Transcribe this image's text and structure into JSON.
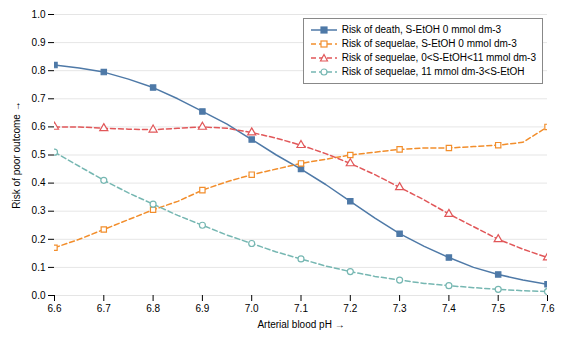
{
  "chart_data": {
    "type": "line",
    "xlabel": "Arterial blood pH",
    "ylabel": "Risk of poor outcome",
    "xlim": [
      6.6,
      7.6
    ],
    "ylim": [
      0.0,
      1.0
    ],
    "xticks": [
      6.6,
      6.7,
      6.8,
      6.9,
      {
        "value": 7.0,
        "label": "7.0"
      },
      7.1,
      7.2,
      7.3,
      7.4,
      7.5,
      7.6
    ],
    "yticks": [
      {
        "value": 0.0,
        "label": "0.0"
      },
      0.1,
      0.2,
      0.3,
      0.4,
      0.5,
      0.6,
      0.7,
      0.8,
      0.9,
      {
        "value": 1.0,
        "label": "1.0"
      }
    ],
    "grid": "y",
    "legend": "upper right",
    "x": [
      6.6,
      6.65,
      6.7,
      6.75,
      6.8,
      6.85,
      6.9,
      6.95,
      7.0,
      7.05,
      7.1,
      7.15,
      7.2,
      7.25,
      7.3,
      7.35,
      7.4,
      7.45,
      7.5,
      7.55,
      7.6
    ],
    "series": [
      {
        "name": "Risk of death, S-EtOH 0 mmol dm-3",
        "marker": "square",
        "line_style": "solid",
        "values": [
          0.82,
          0.81,
          0.795,
          0.77,
          0.74,
          0.7,
          0.655,
          0.61,
          0.555,
          0.5,
          0.45,
          0.395,
          0.335,
          0.275,
          0.22,
          0.175,
          0.135,
          0.1,
          0.075,
          0.055,
          0.04
        ]
      },
      {
        "name": "Risk of sequelae, S-EtOH 0 mmol dm-3",
        "marker": "open-square",
        "line_style": "dashed",
        "values": [
          0.17,
          0.2,
          0.235,
          0.27,
          0.305,
          0.335,
          0.375,
          0.405,
          0.43,
          0.45,
          0.47,
          0.485,
          0.5,
          0.51,
          0.52,
          0.525,
          0.525,
          0.53,
          0.535,
          0.545,
          0.6
        ]
      },
      {
        "name": "Risk of sequelae, 0<S-EtOH<11 mmol dm-3",
        "marker": "open-triangle",
        "line_style": "dashed",
        "values": [
          0.6,
          0.6,
          0.595,
          0.592,
          0.59,
          0.595,
          0.6,
          0.595,
          0.58,
          0.56,
          0.535,
          0.505,
          0.47,
          0.43,
          0.385,
          0.34,
          0.29,
          0.245,
          0.2,
          0.165,
          0.135
        ]
      },
      {
        "name": "Risk of sequelae, 11 mmol dm-3<S-EtOH",
        "marker": "open-circle",
        "line_style": "dashed",
        "values": [
          0.51,
          0.46,
          0.41,
          0.365,
          0.325,
          0.285,
          0.25,
          0.215,
          0.185,
          0.155,
          0.13,
          0.105,
          0.085,
          0.068,
          0.055,
          0.043,
          0.035,
          0.028,
          0.022,
          0.017,
          0.014
        ]
      }
    ]
  }
}
